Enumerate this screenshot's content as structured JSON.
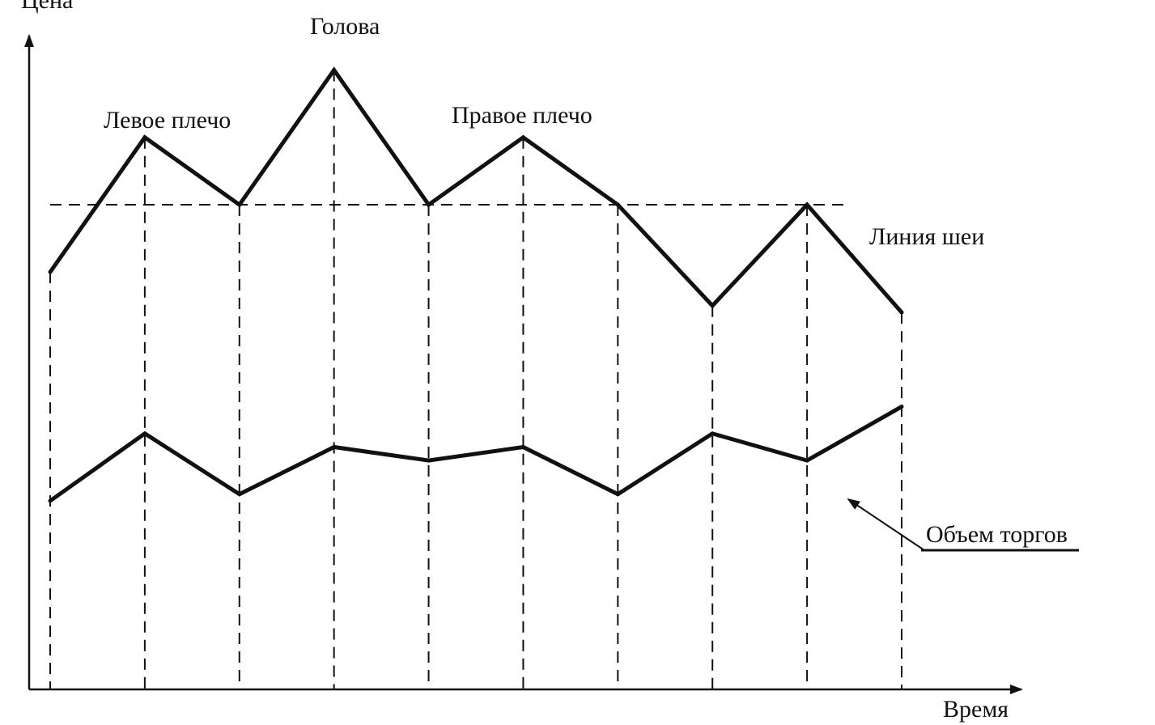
{
  "labels": {
    "y_axis": "Цена",
    "x_axis": "Время",
    "head": "Голова",
    "left_shoulder": "Левое плечо",
    "right_shoulder": "Правое плечо",
    "neckline": "Линия шеи",
    "volume": "Объем торгов"
  },
  "chart_data": {
    "type": "line",
    "series": [
      {
        "key": "price",
        "values": [
          62,
          82,
          72,
          92,
          72,
          82,
          72,
          57,
          72,
          56
        ]
      },
      {
        "key": "volume",
        "values": [
          28,
          38,
          29,
          36,
          34,
          36,
          29,
          38,
          34,
          42
        ]
      }
    ],
    "neckline_value": 72,
    "ylim": [
      0,
      100
    ]
  }
}
